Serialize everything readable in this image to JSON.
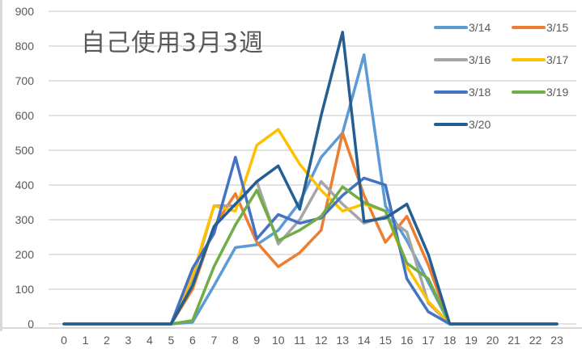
{
  "chart_data": {
    "type": "line",
    "title": "自己使用3月3週",
    "xlabel": "",
    "ylabel": "",
    "ylim": [
      0,
      900
    ],
    "yticks": [
      0,
      100,
      200,
      300,
      400,
      500,
      600,
      700,
      800,
      900
    ],
    "x": [
      0,
      1,
      2,
      3,
      4,
      5,
      6,
      7,
      8,
      9,
      10,
      11,
      12,
      13,
      14,
      15,
      16,
      17,
      18,
      19,
      20,
      21,
      22,
      23
    ],
    "grid": true,
    "legend_position": "top-right",
    "series": [
      {
        "name": "3/14",
        "color": "#5b9bd5",
        "values": [
          0,
          0,
          0,
          0,
          0,
          0,
          5,
          110,
          220,
          228,
          270,
          350,
          480,
          550,
          775,
          340,
          240,
          120,
          0,
          0,
          0,
          0,
          0,
          0
        ]
      },
      {
        "name": "3/15",
        "color": "#ed7d31",
        "values": [
          0,
          0,
          0,
          0,
          0,
          0,
          100,
          280,
          375,
          235,
          165,
          205,
          270,
          550,
          370,
          235,
          310,
          170,
          0,
          0,
          0,
          0,
          0,
          0
        ]
      },
      {
        "name": "3/16",
        "color": "#a5a5a5",
        "values": [
          0,
          0,
          0,
          0,
          0,
          0,
          130,
          340,
          340,
          410,
          230,
          300,
          410,
          345,
          290,
          310,
          265,
          60,
          0,
          0,
          0,
          0,
          0,
          0
        ]
      },
      {
        "name": "3/17",
        "color": "#ffc000",
        "values": [
          0,
          0,
          0,
          0,
          0,
          0,
          140,
          340,
          325,
          515,
          560,
          460,
          385,
          325,
          345,
          325,
          165,
          65,
          0,
          0,
          0,
          0,
          0,
          0
        ]
      },
      {
        "name": "3/18",
        "color": "#4472c4",
        "values": [
          0,
          0,
          0,
          0,
          0,
          0,
          160,
          260,
          480,
          245,
          315,
          290,
          305,
          370,
          420,
          400,
          130,
          35,
          0,
          0,
          0,
          0,
          0,
          0
        ]
      },
      {
        "name": "3/19",
        "color": "#70ad47",
        "values": [
          0,
          0,
          0,
          0,
          0,
          0,
          10,
          165,
          285,
          385,
          240,
          270,
          310,
          395,
          350,
          325,
          175,
          130,
          0,
          0,
          0,
          0,
          0,
          0
        ]
      },
      {
        "name": "3/20",
        "color": "#255e91",
        "values": [
          0,
          0,
          0,
          0,
          0,
          0,
          110,
          280,
          345,
          410,
          455,
          330,
          600,
          840,
          295,
          305,
          345,
          200,
          0,
          0,
          0,
          0,
          0,
          0
        ]
      }
    ]
  }
}
